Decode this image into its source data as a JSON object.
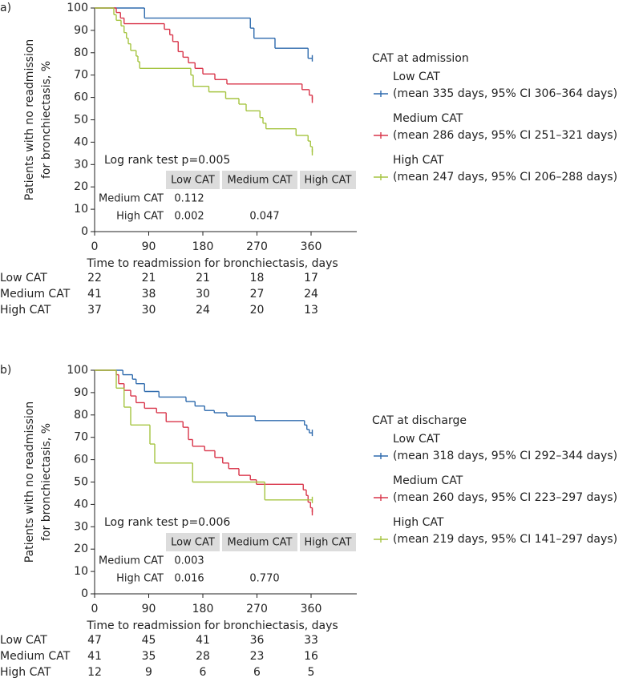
{
  "chart_data": [
    {
      "type": "line",
      "step": true,
      "panel_label": "a)",
      "ylabel": [
        "Patients with no readmission",
        "for bronchiectasis, %"
      ],
      "xlabel": "Time to readmission for bronchiectasis, days",
      "xlim": [
        0,
        436
      ],
      "xticks": [
        0,
        90,
        180,
        270,
        360
      ],
      "ylim": [
        0,
        100
      ],
      "yticks": [
        0,
        10,
        20,
        30,
        40,
        50,
        60,
        70,
        80,
        90,
        100
      ],
      "legend_title": "CAT at admission",
      "series": [
        {
          "name": "Low CAT",
          "color": "#2e6aad",
          "description": "(mean 335 days, 95% CI 306–364 days)",
          "x": [
            0,
            83,
            259,
            265,
            300,
            355,
            362
          ],
          "values": [
            100,
            95.5,
            91,
            86.5,
            82,
            77.5,
            77.5
          ],
          "at_risk": [
            22,
            21,
            21,
            18,
            17
          ]
        },
        {
          "name": "Medium CAT",
          "color": "#d9354a",
          "description": "(mean 286 days, 95% CI 251–321 days)",
          "x": [
            0,
            36,
            43,
            49,
            116,
            125,
            130,
            139,
            147,
            156,
            167,
            180,
            200,
            220,
            345,
            357,
            362
          ],
          "values": [
            100,
            98,
            95.5,
            93,
            90.5,
            88,
            85,
            80.5,
            78,
            75.5,
            73,
            70.5,
            68,
            66,
            63.5,
            61,
            59
          ],
          "at_risk": [
            41,
            38,
            30,
            27,
            24
          ]
        },
        {
          "name": "High CAT",
          "color": "#a5c440",
          "description": "(mean 247 days, 95% CI 206–288 days)",
          "x": [
            0,
            32,
            36,
            44,
            49,
            53,
            56,
            60,
            69,
            72,
            75,
            160,
            164,
            190,
            218,
            240,
            252,
            275,
            280,
            285,
            335,
            355,
            359,
            362
          ],
          "values": [
            100,
            97,
            94.5,
            92,
            89,
            86.5,
            84,
            81,
            78.5,
            76,
            73,
            70,
            65,
            62.5,
            59.5,
            57,
            54,
            51,
            48.5,
            46,
            43,
            40.5,
            38,
            35.5
          ],
          "at_risk": [
            37,
            30,
            24,
            20,
            13
          ]
        }
      ],
      "logrank": "Log rank test p=0.005",
      "ptable": {
        "columns": [
          "Low CAT",
          "Medium CAT",
          "High CAT"
        ],
        "rows": [
          {
            "label": "Medium CAT",
            "values": [
              "0.112"
            ]
          },
          {
            "label": "High CAT",
            "values": [
              "0.002",
              "0.047"
            ]
          }
        ]
      }
    },
    {
      "type": "line",
      "step": true,
      "panel_label": "b)",
      "ylabel": [
        "Patients with no readmission",
        "for bronchiectasis, %"
      ],
      "xlabel": "Time to readmission for bronchiectasis, days",
      "xlim": [
        0,
        436
      ],
      "xticks": [
        0,
        90,
        180,
        270,
        360
      ],
      "ylim": [
        0,
        100
      ],
      "yticks": [
        0,
        10,
        20,
        30,
        40,
        50,
        60,
        70,
        80,
        90,
        100
      ],
      "legend_title": "CAT at discharge",
      "series": [
        {
          "name": "Low CAT",
          "color": "#2e6aad",
          "description": "(mean 318 days, 95% CI 292–344 days)",
          "x": [
            0,
            47,
            63,
            69,
            83,
            107,
            152,
            167,
            183,
            199,
            220,
            267,
            349,
            353,
            357,
            362
          ],
          "values": [
            100,
            98,
            96,
            94,
            90.5,
            88,
            86,
            84,
            82,
            81,
            79.5,
            77.5,
            75.5,
            73.5,
            72,
            72
          ],
          "at_risk": [
            47,
            45,
            41,
            36,
            33
          ]
        },
        {
          "name": "Medium CAT",
          "color": "#d9354a",
          "description": "(mean 260 days, 95% CI 223–297 days)",
          "x": [
            0,
            36,
            40,
            49,
            60,
            69,
            83,
            103,
            119,
            147,
            156,
            163,
            183,
            200,
            213,
            223,
            240,
            259,
            269,
            347,
            352,
            355,
            359,
            362
          ],
          "values": [
            100,
            98,
            94,
            91,
            88.5,
            85.5,
            83,
            81,
            77,
            74.5,
            69,
            66,
            64,
            61,
            58.5,
            56,
            53,
            51,
            49,
            46.5,
            44,
            41,
            38.5,
            36.5
          ],
          "at_risk": [
            41,
            35,
            28,
            23,
            16
          ]
        },
        {
          "name": "High CAT",
          "color": "#a5c440",
          "description": "(mean 219 days, 95% CI 141–297 days)",
          "x": [
            0,
            36,
            49,
            60,
            92,
            100,
            163,
            283,
            362
          ],
          "values": [
            100,
            92,
            83.5,
            75.5,
            67,
            58.5,
            50,
            42,
            42
          ],
          "at_risk": [
            12,
            9,
            6,
            6,
            5
          ]
        }
      ],
      "logrank": "Log rank test p=0.006",
      "ptable": {
        "columns": [
          "Low CAT",
          "Medium CAT",
          "High CAT"
        ],
        "rows": [
          {
            "label": "Medium CAT",
            "values": [
              "0.003"
            ]
          },
          {
            "label": "High CAT",
            "values": [
              "0.016",
              "0.770"
            ]
          }
        ]
      }
    }
  ]
}
